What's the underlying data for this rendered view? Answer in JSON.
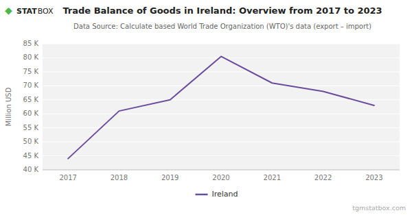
{
  "chart_data": {
    "type": "line",
    "title": "Trade Balance of Goods in Ireland: Overview from 2017 to 2023",
    "subtitle": "Data Source: Calculate based World Trade Organization (WTO)'s data (export – import)",
    "y_label": "Million USD",
    "x": [
      2017,
      2018,
      2019,
      2020,
      2021,
      2022,
      2023
    ],
    "series": [
      {
        "name": "Ireland",
        "color": "#6a4c9c",
        "values": [
          44000,
          61000,
          65000,
          80500,
          71000,
          68000,
          63000
        ]
      }
    ],
    "xlim": [
      2016.5,
      2023.5
    ],
    "xticks": [
      2017,
      2018,
      2019,
      2020,
      2021,
      2022,
      2023
    ],
    "ylim": [
      40000,
      85000
    ],
    "yticks": [
      {
        "value": 40000,
        "label": "40 K"
      },
      {
        "value": 45000,
        "label": "45 K"
      },
      {
        "value": 50000,
        "label": "50 K"
      },
      {
        "value": 55000,
        "label": "55 K"
      },
      {
        "value": 60000,
        "label": "60 K"
      },
      {
        "value": 65000,
        "label": "65 K"
      },
      {
        "value": 70000,
        "label": "70 K"
      },
      {
        "value": 75000,
        "label": "75 K"
      },
      {
        "value": 80000,
        "label": "80 K"
      },
      {
        "value": 85000,
        "label": "85 K"
      }
    ],
    "grid": true,
    "legend": "bottom",
    "annotations": [
      {
        "text": "◆",
        "color": "#4db848"
      },
      {
        "text": "STAT"
      },
      {
        "text": "BOX"
      },
      {
        "text": "tgmstatbox.com"
      }
    ]
  }
}
